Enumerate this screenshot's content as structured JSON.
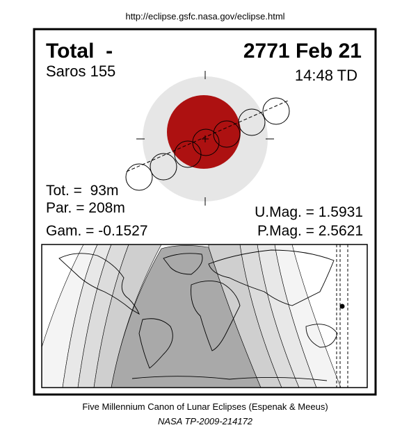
{
  "header": {
    "url": "http://eclipse.gsfc.nasa.gov/eclipse.html"
  },
  "title": {
    "type": "Total  -",
    "date": "2771 Feb 21"
  },
  "saros": "Saros 155",
  "time": "14:48 TD",
  "params": {
    "tot": "Tot. =  93m",
    "par": "Par. = 208m",
    "gam": "Gam. = -0.1527",
    "umag": "U.Mag. = 1.5931",
    "pmag": "P.Mag. = 2.5621"
  },
  "footer": {
    "canon": "Five Millennium Canon of Lunar Eclipses (Espenak & Meeus)",
    "ref": "NASA TP-2009-214172"
  }
}
